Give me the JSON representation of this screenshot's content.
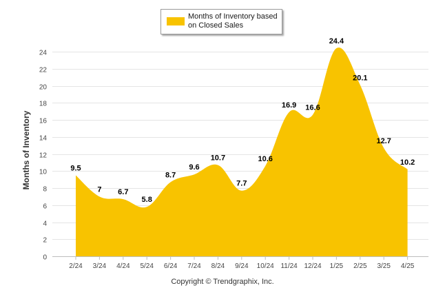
{
  "chart_data": {
    "type": "area",
    "categories": [
      "2/24",
      "3/24",
      "4/24",
      "5/24",
      "6/24",
      "7/24",
      "8/24",
      "9/24",
      "10/24",
      "11/24",
      "12/24",
      "1/25",
      "2/25",
      "3/25",
      "4/25"
    ],
    "series": [
      {
        "name": "Months of Inventory based on Closed Sales",
        "values": [
          9.5,
          7,
          6.7,
          5.8,
          8.7,
          9.6,
          10.7,
          7.7,
          10.6,
          16.9,
          16.6,
          24.4,
          20.1,
          12.7,
          10.2
        ],
        "labels": [
          "9.5",
          "7",
          "6.7",
          "5.8",
          "8.7",
          "9.6",
          "10.7",
          "7.7",
          "10.6",
          "16.9",
          "16.6",
          "24.4",
          "20.1",
          "12.7",
          "10.2"
        ],
        "color": "#f8c300"
      }
    ],
    "ylabel": "Months of Inventory",
    "ylim": [
      0,
      24
    ],
    "yticks": [
      0,
      2,
      4,
      6,
      8,
      10,
      12,
      14,
      16,
      18,
      20,
      22,
      24
    ],
    "grid": true,
    "legend_position": "top-center"
  },
  "legend": {
    "label": "Months of Inventory based on Closed Sales",
    "color": "#f8c300"
  },
  "footer": {
    "copyright": "Copyright © Trendgraphix, Inc."
  }
}
